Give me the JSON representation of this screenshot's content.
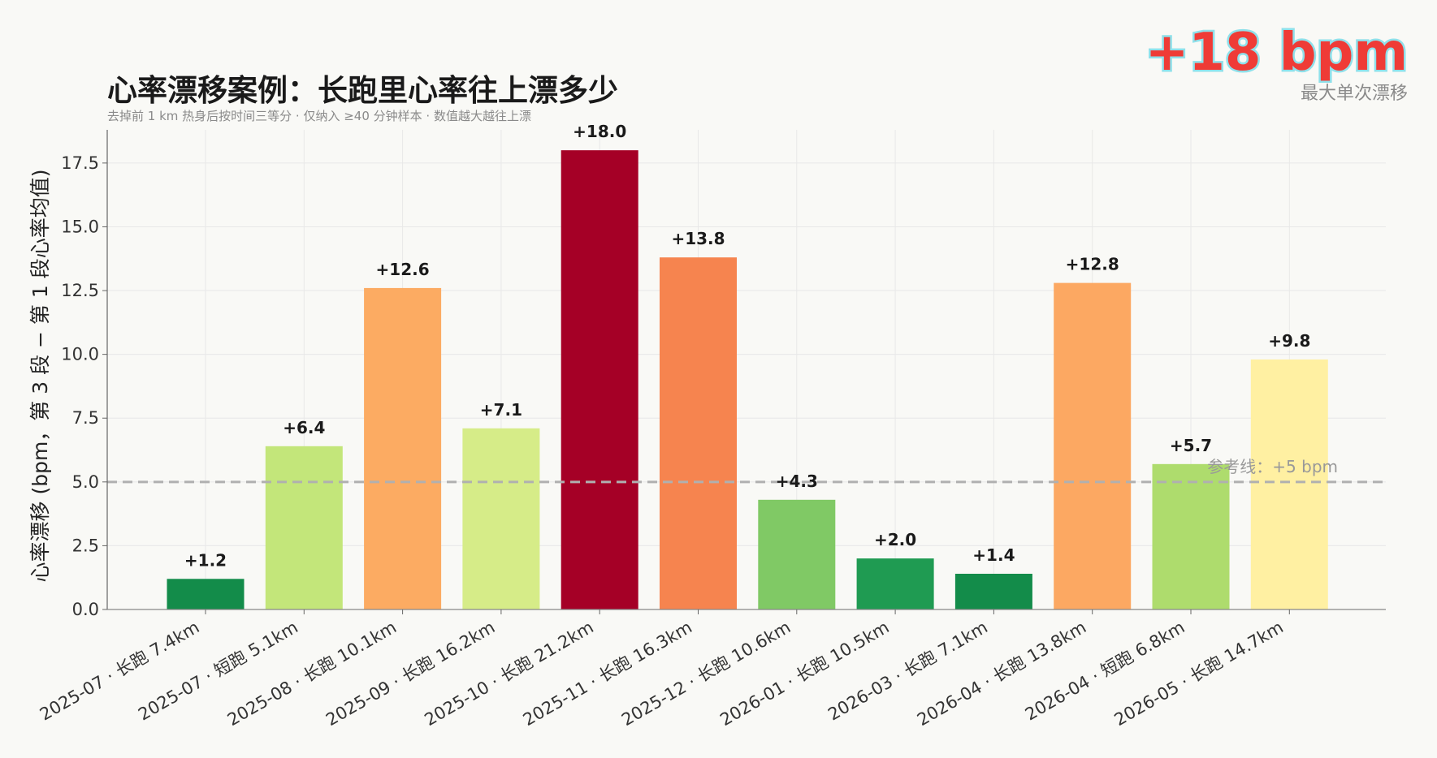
{
  "header": {
    "title": "心率漂移案例：长跑里心率往上漂多少",
    "subtitle": "去掉前 1 km 热身后按时间三等分 · 仅纳入 ≥40 分钟样本 · 数值越大越往上漂"
  },
  "badge": {
    "value": "+18 bpm",
    "caption": "最大单次漂移",
    "color": "#ef3b36"
  },
  "chart_data": {
    "type": "bar",
    "title": "心率漂移案例：长跑里心率往上漂多少",
    "xlabel": "",
    "ylabel": "心率漂移 (bpm，第 3 段 − 第 1 段心率均值)",
    "ylim": [
      0,
      18.8
    ],
    "yticks": [
      "0.0",
      "2.5",
      "5.0",
      "7.5",
      "10.0",
      "12.5",
      "15.0",
      "17.5"
    ],
    "ytick_values": [
      0,
      2.5,
      5,
      7.5,
      10,
      12.5,
      15,
      17.5
    ],
    "grid": true,
    "categories": [
      "2025-07 · 长跑 7.4km",
      "2025-07 · 短跑 5.1km",
      "2025-08 · 长跑 10.1km",
      "2025-09 · 长跑 16.2km",
      "2025-10 · 长跑 21.2km",
      "2025-11 · 长跑 16.3km",
      "2025-12 · 长跑 10.6km",
      "2026-01 · 长跑 10.5km",
      "2026-03 · 长跑 7.1km",
      "2026-04 · 长跑 13.8km",
      "2026-04 · 短跑 6.8km",
      "2026-05 · 长跑 14.7km"
    ],
    "values": [
      1.2,
      6.4,
      12.6,
      7.1,
      18.0,
      13.8,
      4.3,
      2.0,
      1.4,
      12.8,
      5.7,
      9.8
    ],
    "value_labels": [
      "+1.2",
      "+6.4",
      "+12.6",
      "+7.1",
      "+18.0",
      "+13.8",
      "+4.3",
      "+2.0",
      "+1.4",
      "+12.8",
      "+5.7",
      "+9.8"
    ],
    "bar_colors": [
      "#138c4a",
      "#c3e67a",
      "#fcab62",
      "#d6ec88",
      "#a50026",
      "#f6844f",
      "#80c965",
      "#1f9b52",
      "#138c4a",
      "#fca862",
      "#aedc6d",
      "#fff0a2"
    ],
    "reference_line": {
      "value": 5,
      "label": "参考线：+5 bpm",
      "color": "#b0b0b0"
    }
  }
}
